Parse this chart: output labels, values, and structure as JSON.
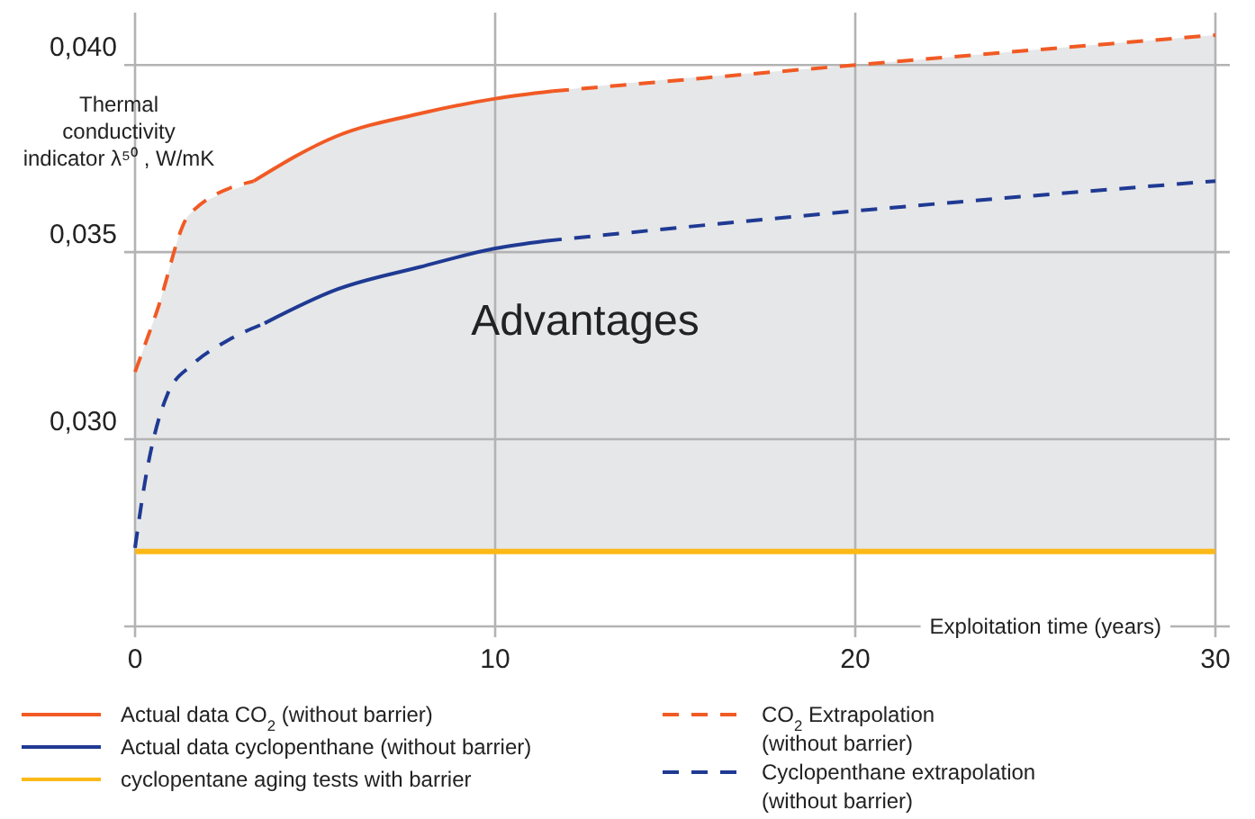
{
  "chart_data": {
    "type": "line",
    "xlabel": "Exploitation time  (years)",
    "ylabel": "Thermal conductivity indicator λ⁵⁰ , W/mK",
    "xlim": [
      0,
      30
    ],
    "xticks": [
      0,
      10,
      20,
      30
    ],
    "ylim": [
      0.025,
      0.0414
    ],
    "yticks": [
      {
        "value": 0.03,
        "label": "0,030"
      },
      {
        "value": 0.035,
        "label": "0,035"
      },
      {
        "value": 0.04,
        "label": "0,040"
      }
    ],
    "grid": true,
    "legend": "bottom",
    "annotations": [
      "Advantages"
    ],
    "series": [
      {
        "name": "Actual data CO$_{2}$ (without barrier)",
        "color": "#f15a24",
        "line_style": "solid",
        "x": [
          3.3,
          5.6,
          7.9,
          10,
          11.6
        ],
        "values": [
          0.0369,
          0.0381,
          0.0387,
          0.0391,
          0.0393
        ]
      },
      {
        "name": "Actual data cyclopenthane (without barrier)",
        "color": "#1f3a93",
        "line_style": "solid",
        "x": [
          3.6,
          5.6,
          7.9,
          10,
          11.4
        ],
        "values": [
          0.0331,
          0.034,
          0.0346,
          0.0351,
          0.0353
        ]
      },
      {
        "name": "cyclopentane aging tests with barrier",
        "color": "#fbb917",
        "line_style": "solid",
        "x": [
          0,
          0.6,
          1.5,
          3.3,
          5.6,
          7.9,
          10,
          11.6,
          20,
          30
        ],
        "values": [
          0.027,
          0.027,
          0.027,
          0.027,
          0.027,
          0.027,
          0.027,
          0.027,
          0.027,
          0.027
        ],
        "lower": [
          0.027,
          0.027,
          0.027,
          0.027,
          0.027,
          0.027,
          0.027,
          0.027,
          0.027,
          0.027
        ],
        "upper": [
          0.0318,
          0.0334,
          0.036,
          0.0369,
          0.0381,
          0.0387,
          0.0391,
          0.0393,
          0.04,
          0.0408
        ]
      },
      {
        "name": "CO$_{2}$ Extrapolation (without barrier)",
        "color": "#f15a24",
        "line_style": "dashed",
        "x": [
          0,
          0.6,
          1.5,
          3.3,
          7,
          11.6,
          20,
          30
        ],
        "values": [
          0.0318,
          0.0334,
          0.036,
          0.0369,
          null,
          0.0393,
          0.04,
          0.0408
        ]
      },
      {
        "name": "Cyclopenthane extrapolation (without barrier)",
        "color": "#1f3a93",
        "line_style": "dashed",
        "x": [
          0,
          0.3,
          0.9,
          1.6,
          2.5,
          3.6,
          7,
          11.4,
          20,
          30
        ],
        "values": [
          0.0271,
          0.029,
          0.0312,
          0.032,
          0.0326,
          0.0331,
          null,
          0.0353,
          0.0361,
          0.0369
        ]
      }
    ]
  }
}
